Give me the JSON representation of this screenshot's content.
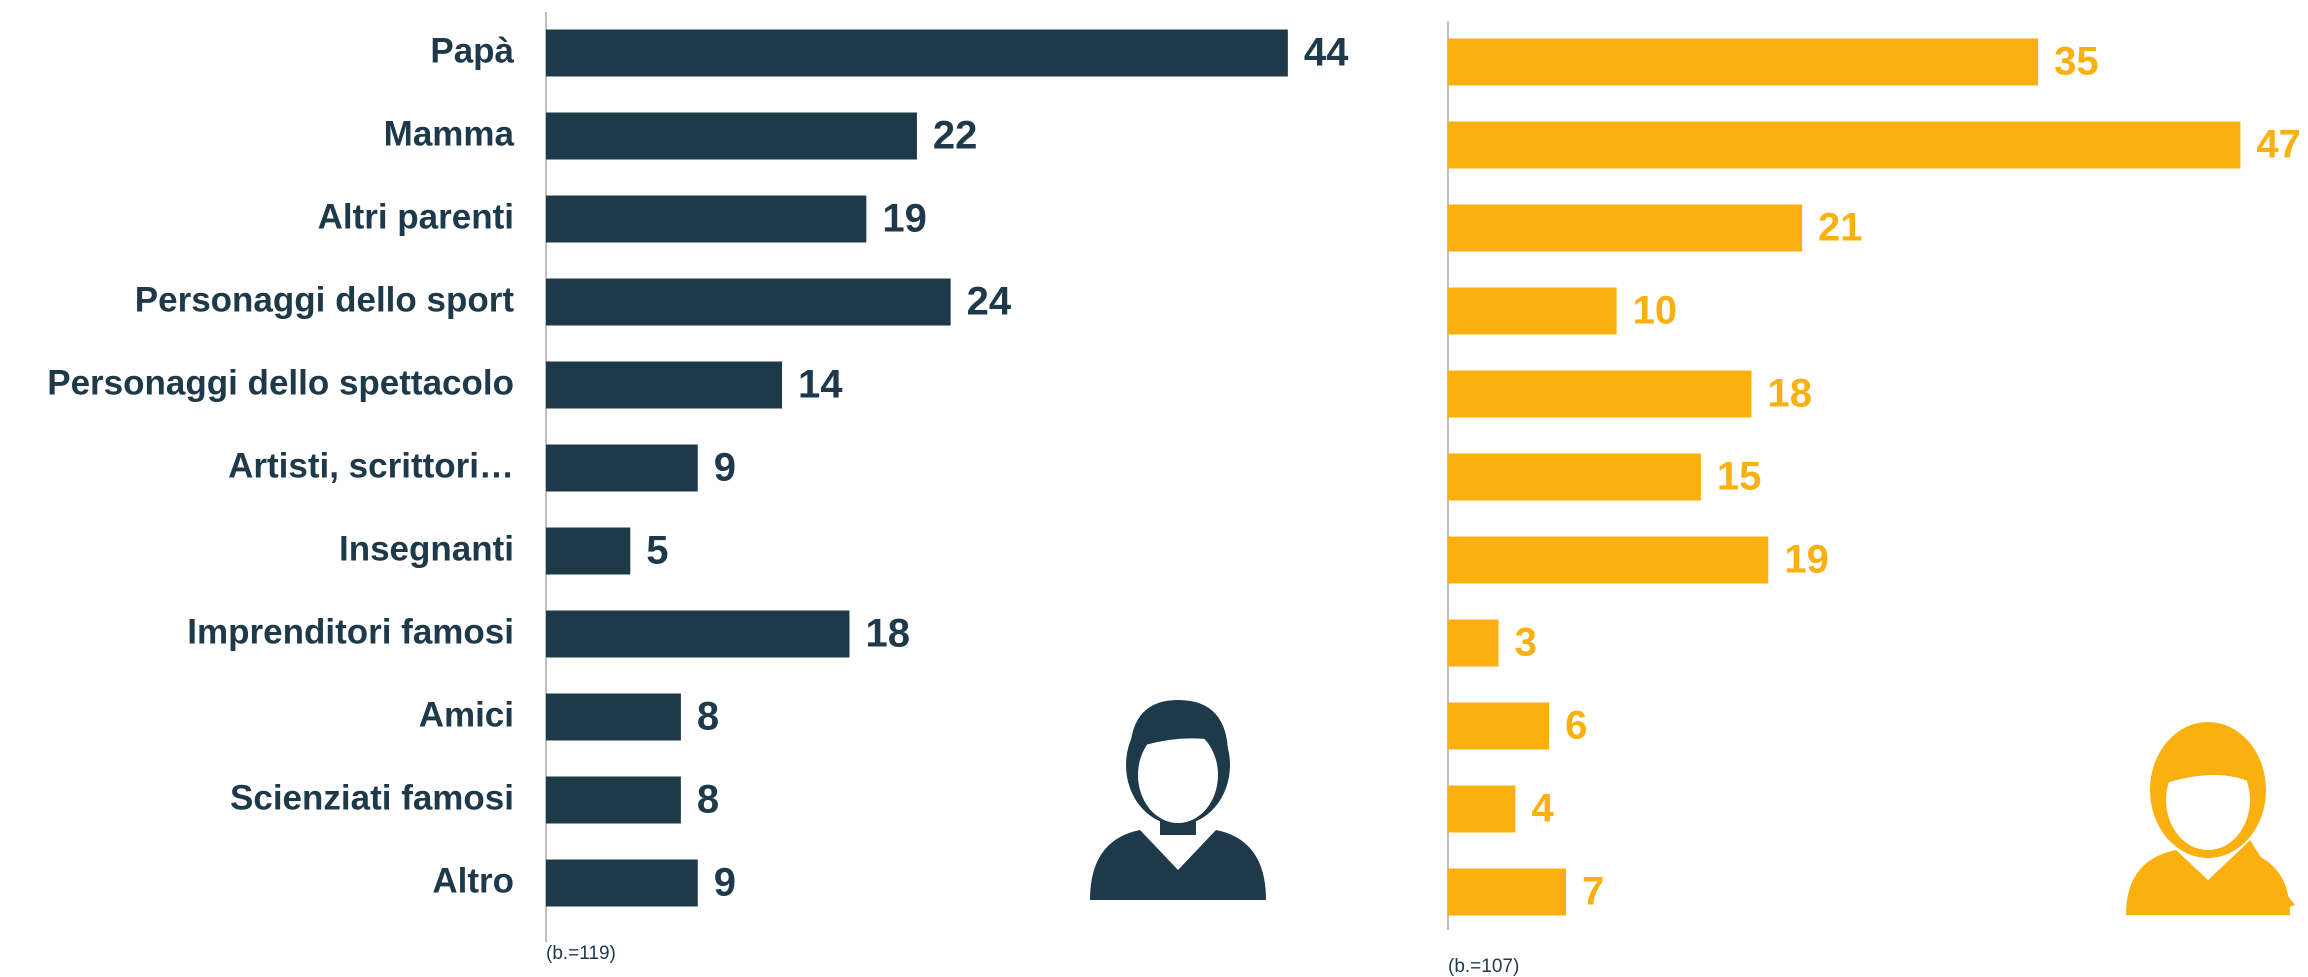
{
  "chart_data": [
    {
      "type": "bar",
      "orientation": "horizontal",
      "color": "#1e3a4a",
      "categories": [
        "Papà",
        "Mamma",
        "Altri parenti",
        "Personaggi dello sport",
        "Personaggi dello spettacolo",
        "Artisti, scrittori…",
        "Insegnanti",
        "Imprenditori famosi",
        "Amici",
        "Scienziati famosi",
        "Altro"
      ],
      "values": [
        44,
        22,
        19,
        24,
        14,
        9,
        5,
        18,
        8,
        8,
        9
      ],
      "note": "(b.=119)"
    },
    {
      "type": "bar",
      "orientation": "horizontal",
      "color": "#fbb010",
      "values": [
        35,
        47,
        21,
        10,
        18,
        15,
        19,
        3,
        6,
        4,
        7
      ],
      "note": "(b.=107)"
    }
  ]
}
